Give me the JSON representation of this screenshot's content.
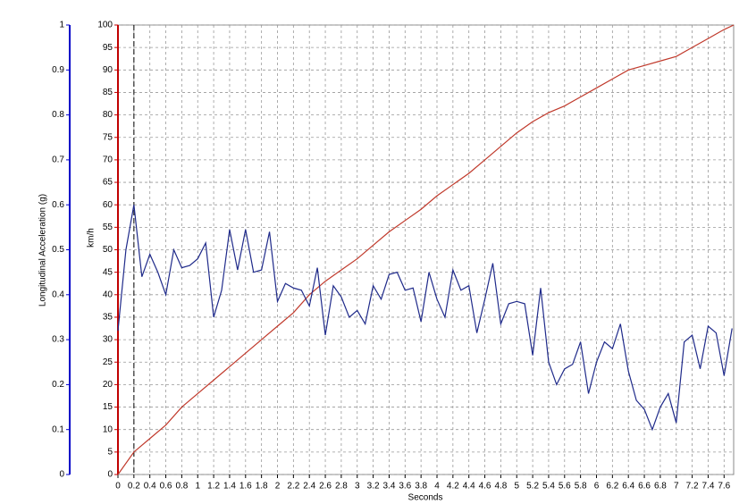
{
  "chart_data": {
    "type": "line",
    "xlabel": "Seconds",
    "ylabel": "km/h",
    "y2label": "Longitudinal Acceleration (g)",
    "xlim": [
      0,
      7.72
    ],
    "xticks": [
      0,
      0.2,
      0.4,
      0.6,
      0.8,
      1,
      1.2,
      1.4,
      1.6,
      1.8,
      2,
      2.2,
      2.4,
      2.6,
      2.8,
      3,
      3.2,
      3.4,
      3.6,
      3.8,
      4,
      4.2,
      4.4,
      4.6,
      4.8,
      5,
      5.2,
      5.4,
      5.6,
      5.8,
      6,
      6.2,
      6.4,
      6.6,
      6.8,
      7,
      7.2,
      7.4,
      7.6
    ],
    "ylim": [
      0,
      100
    ],
    "yticks": [
      0,
      5,
      10,
      15,
      20,
      25,
      30,
      35,
      40,
      45,
      50,
      55,
      60,
      65,
      70,
      75,
      80,
      85,
      90,
      95,
      100
    ],
    "y2lim": [
      0,
      1
    ],
    "y2ticks": [
      0,
      0.1,
      0.2,
      0.3,
      0.4,
      0.5,
      0.6,
      0.7,
      0.8,
      0.9,
      1
    ],
    "grid": true,
    "marker_x": 0.2,
    "series": [
      {
        "color": "#c0392b",
        "x": [
          0,
          0.2,
          0.4,
          0.6,
          0.8,
          1,
          1.2,
          1.4,
          1.6,
          1.8,
          2,
          2.2,
          2.4,
          2.6,
          2.8,
          3,
          3.2,
          3.4,
          3.6,
          3.8,
          4,
          4.2,
          4.4,
          4.6,
          4.8,
          5,
          5.2,
          5.4,
          5.6,
          5.8,
          6,
          6.2,
          6.4,
          6.6,
          6.8,
          7,
          7.2,
          7.4,
          7.6,
          7.72
        ],
        "values": [
          0,
          5,
          8,
          11,
          15,
          18,
          21,
          24,
          27,
          30,
          33,
          36,
          40,
          43,
          45.5,
          48,
          51,
          54,
          56.5,
          59,
          62,
          64.5,
          67,
          70,
          73,
          76,
          78.5,
          80.5,
          82,
          84,
          86,
          88,
          90,
          91,
          92,
          93,
          95,
          97,
          99,
          100
        ]
      },
      {
        "color": "#1f2a8a",
        "axis": "y2",
        "x": [
          0,
          0.1,
          0.2,
          0.3,
          0.4,
          0.5,
          0.6,
          0.7,
          0.8,
          0.9,
          1,
          1.1,
          1.2,
          1.3,
          1.4,
          1.5,
          1.6,
          1.7,
          1.8,
          1.9,
          2,
          2.1,
          2.2,
          2.3,
          2.4,
          2.5,
          2.6,
          2.7,
          2.8,
          2.9,
          3,
          3.1,
          3.2,
          3.3,
          3.4,
          3.5,
          3.6,
          3.7,
          3.8,
          3.9,
          4,
          4.1,
          4.2,
          4.3,
          4.4,
          4.5,
          4.6,
          4.7,
          4.8,
          4.9,
          5,
          5.1,
          5.2,
          5.3,
          5.4,
          5.5,
          5.6,
          5.7,
          5.8,
          5.9,
          6,
          6.1,
          6.2,
          6.3,
          6.4,
          6.5,
          6.6,
          6.7,
          6.8,
          6.9,
          7,
          7.1,
          7.2,
          7.3,
          7.4,
          7.5,
          7.6,
          7.7
        ],
        "values": [
          0.32,
          0.5,
          0.6,
          0.44,
          0.49,
          0.45,
          0.4,
          0.5,
          0.46,
          0.465,
          0.48,
          0.515,
          0.35,
          0.41,
          0.545,
          0.455,
          0.545,
          0.45,
          0.455,
          0.54,
          0.385,
          0.425,
          0.415,
          0.41,
          0.375,
          0.46,
          0.31,
          0.42,
          0.395,
          0.35,
          0.365,
          0.335,
          0.42,
          0.39,
          0.445,
          0.45,
          0.41,
          0.415,
          0.34,
          0.45,
          0.39,
          0.35,
          0.455,
          0.41,
          0.42,
          0.315,
          0.39,
          0.47,
          0.335,
          0.38,
          0.385,
          0.38,
          0.265,
          0.415,
          0.25,
          0.2,
          0.235,
          0.245,
          0.295,
          0.18,
          0.25,
          0.295,
          0.28,
          0.335,
          0.23,
          0.165,
          0.145,
          0.1,
          0.15,
          0.18,
          0.115,
          0.295,
          0.31,
          0.235,
          0.33,
          0.315,
          0.22,
          0.325
        ]
      }
    ]
  }
}
